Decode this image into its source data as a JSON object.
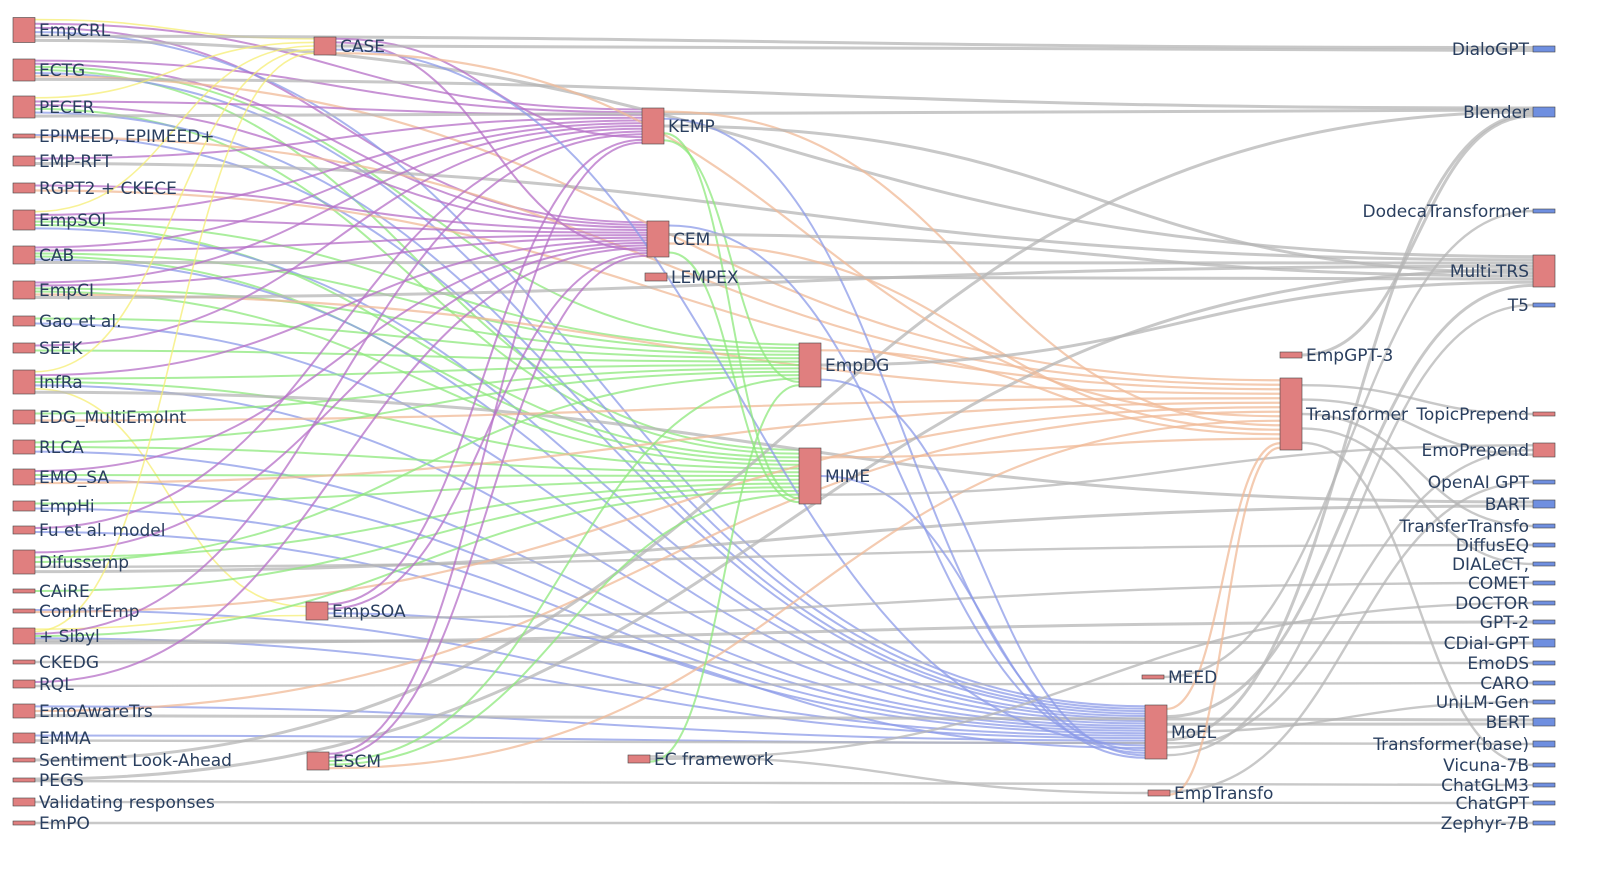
{
  "diagram": {
    "type": "sankey",
    "colors": {
      "node_default": "#e07f7f",
      "node_output": "#6f8fe0",
      "link_default": "#b5b5b5",
      "yellow": "#f5ee73",
      "purple": "#b56fc7",
      "green": "#8ee87c",
      "blue": "#8c9be8",
      "orange": "#f0b997"
    },
    "nodes": {
      "EmpCRL": {
        "label": "EmpCRL"
      },
      "ECTG": {
        "label": "ECTG"
      },
      "PECER": {
        "label": "PECER"
      },
      "EPIMEED": {
        "label": "EPIMEED, EPIMEED+"
      },
      "EMPRFT": {
        "label": "EMP-RFT"
      },
      "RGPT2": {
        "label": "RGPT2 + CKECE"
      },
      "EmpSOI": {
        "label": "EmpSOI"
      },
      "CAB": {
        "label": "CAB"
      },
      "EmpCI": {
        "label": "EmpCI"
      },
      "Gao": {
        "label": "Gao et al."
      },
      "SEEK": {
        "label": "SEEK"
      },
      "InfRa": {
        "label": "InfRa"
      },
      "EDG": {
        "label": "EDG_MultiEmoInt"
      },
      "RLCA": {
        "label": "RLCA"
      },
      "EMOSA": {
        "label": "EMO_SA"
      },
      "EmpHi": {
        "label": "EmpHi"
      },
      "Fu": {
        "label": "Fu et al. model"
      },
      "Difussemp": {
        "label": "Difussemp"
      },
      "CAiRE": {
        "label": "CAiRE"
      },
      "ConIntrEmp": {
        "label": "ConIntrEmp"
      },
      "Sibyl": {
        "label": "+ Sibyl"
      },
      "CKEDG": {
        "label": "CKEDG"
      },
      "RQL": {
        "label": "RQL"
      },
      "EmoAwareTrs": {
        "label": "EmoAwareTrs"
      },
      "EMMA": {
        "label": "EMMA"
      },
      "SLA": {
        "label": "Sentiment Look-Ahead"
      },
      "PEGS": {
        "label": "PEGS"
      },
      "ValResp": {
        "label": "Validating responses"
      },
      "EmPO": {
        "label": "EmPO"
      },
      "CASE": {
        "label": "CASE"
      },
      "EmpSOA": {
        "label": "EmpSOA"
      },
      "ESCM": {
        "label": "ESCM"
      },
      "KEMP": {
        "label": "KEMP"
      },
      "CEM": {
        "label": "CEM"
      },
      "LEMPEX": {
        "label": "LEMPEX"
      },
      "ECframework": {
        "label": "EC framework"
      },
      "EmpDG": {
        "label": "EmpDG"
      },
      "MIME": {
        "label": "MIME"
      },
      "MEED": {
        "label": "MEED"
      },
      "MoEL": {
        "label": "MoEL"
      },
      "EmpTransfo": {
        "label": "EmpTransfo"
      },
      "EmpGPT3": {
        "label": "EmpGPT-3"
      },
      "Transformer": {
        "label": "Transformer"
      },
      "DialoGPT": {
        "label": "DialoGPT"
      },
      "Blender": {
        "label": "Blender"
      },
      "Dodeca": {
        "label": "DodecaTransformer"
      },
      "MultiTRS": {
        "label": "Multi-TRS"
      },
      "T5": {
        "label": "T5"
      },
      "TopicPrepend": {
        "label": "TopicPrepend"
      },
      "EmoPrepend": {
        "label": "EmoPrepend"
      },
      "OpenAIGPT": {
        "label": "OpenAI GPT"
      },
      "BART": {
        "label": "BART"
      },
      "TransferTransfo": {
        "label": "TransferTransfo"
      },
      "DiffusEQ": {
        "label": "DiffusEQ"
      },
      "DIALeCT": {
        "label": "DIALeCT,"
      },
      "COMET": {
        "label": "COMET"
      },
      "DOCTOR": {
        "label": "DOCTOR"
      },
      "GPT2": {
        "label": "GPT-2"
      },
      "CDialGPT": {
        "label": "CDial-GPT"
      },
      "EmoDS": {
        "label": "EmoDS"
      },
      "CARO": {
        "label": "CARO"
      },
      "UniLMGen": {
        "label": "UniLM-Gen"
      },
      "BERT": {
        "label": "BERT"
      },
      "TransformerBase": {
        "label": "Transformer(base)"
      },
      "Vicuna": {
        "label": "Vicuna-7B"
      },
      "ChatGLM3": {
        "label": "ChatGLM3"
      },
      "ChatGPT": {
        "label": "ChatGPT"
      },
      "Zephyr": {
        "label": "Zephyr-7B"
      }
    },
    "links": [
      {
        "source": "EmpCRL",
        "target": "CASE"
      },
      {
        "source": "EmpCRL",
        "target": "KEMP"
      },
      {
        "source": "EmpCRL",
        "target": "CEM"
      },
      {
        "source": "EmpCRL",
        "target": "MoEL"
      },
      {
        "source": "EmpCRL",
        "target": "DialoGPT"
      },
      {
        "source": "EmpCRL",
        "target": "MultiTRS"
      },
      {
        "source": "ECTG",
        "target": "KEMP"
      },
      {
        "source": "ECTG",
        "target": "CEM"
      },
      {
        "source": "ECTG",
        "target": "EmpDG"
      },
      {
        "source": "ECTG",
        "target": "MIME"
      },
      {
        "source": "ECTG",
        "target": "MoEL"
      },
      {
        "source": "ECTG",
        "target": "Transformer"
      },
      {
        "source": "ECTG",
        "target": "Blender"
      },
      {
        "source": "PECER",
        "target": "CASE"
      },
      {
        "source": "PECER",
        "target": "KEMP"
      },
      {
        "source": "PECER",
        "target": "CEM"
      },
      {
        "source": "PECER",
        "target": "MIME"
      },
      {
        "source": "PECER",
        "target": "MoEL"
      },
      {
        "source": "PECER",
        "target": "Blender"
      },
      {
        "source": "EPIMEED",
        "target": "MoEL"
      },
      {
        "source": "EPIMEED",
        "target": "Transformer"
      },
      {
        "source": "EMPRFT",
        "target": "KEMP"
      },
      {
        "source": "EMPRFT",
        "target": "MultiTRS"
      },
      {
        "source": "RGPT2",
        "target": "CEM"
      },
      {
        "source": "RGPT2",
        "target": "Transformer"
      },
      {
        "source": "EmpSOI",
        "target": "CASE"
      },
      {
        "source": "EmpSOI",
        "target": "KEMP"
      },
      {
        "source": "EmpSOI",
        "target": "CEM"
      },
      {
        "source": "EmpSOI",
        "target": "EmpDG"
      },
      {
        "source": "EmpSOI",
        "target": "MIME"
      },
      {
        "source": "EmpSOI",
        "target": "MoEL"
      },
      {
        "source": "CAB",
        "target": "KEMP"
      },
      {
        "source": "CAB",
        "target": "CEM"
      },
      {
        "source": "CAB",
        "target": "EmpDG"
      },
      {
        "source": "CAB",
        "target": "MIME"
      },
      {
        "source": "CAB",
        "target": "MoEL"
      },
      {
        "source": "CAB",
        "target": "MultiTRS"
      },
      {
        "source": "EmpCI",
        "target": "KEMP"
      },
      {
        "source": "EmpCI",
        "target": "CEM"
      },
      {
        "source": "EmpCI",
        "target": "EmpDG"
      },
      {
        "source": "EmpCI",
        "target": "MIME"
      },
      {
        "source": "EmpCI",
        "target": "Transformer"
      },
      {
        "source": "EmpCI",
        "target": "MultiTRS"
      },
      {
        "source": "Gao",
        "target": "EmpDG"
      },
      {
        "source": "Gao",
        "target": "MoEL"
      },
      {
        "source": "SEEK",
        "target": "KEMP"
      },
      {
        "source": "SEEK",
        "target": "EmpDG"
      },
      {
        "source": "InfRa",
        "target": "CASE"
      },
      {
        "source": "InfRa",
        "target": "CEM"
      },
      {
        "source": "InfRa",
        "target": "EmpDG"
      },
      {
        "source": "InfRa",
        "target": "MIME"
      },
      {
        "source": "InfRa",
        "target": "MoEL"
      },
      {
        "source": "InfRa",
        "target": "EmpSOA"
      },
      {
        "source": "InfRa",
        "target": "BART"
      },
      {
        "source": "EDG",
        "target": "EmpDG"
      },
      {
        "source": "EDG",
        "target": "Transformer"
      },
      {
        "source": "RLCA",
        "target": "EmpDG"
      },
      {
        "source": "RLCA",
        "target": "MIME"
      },
      {
        "source": "RLCA",
        "target": "MoEL"
      },
      {
        "source": "EMOSA",
        "target": "CEM"
      },
      {
        "source": "EMOSA",
        "target": "MIME"
      },
      {
        "source": "EMOSA",
        "target": "MoEL"
      },
      {
        "source": "EMOSA",
        "target": "Transformer"
      },
      {
        "source": "EmpHi",
        "target": "MIME"
      },
      {
        "source": "EmpHi",
        "target": "MoEL"
      },
      {
        "source": "Fu",
        "target": "KEMP"
      },
      {
        "source": "Fu",
        "target": "MoEL"
      },
      {
        "source": "Difussemp",
        "target": "CEM"
      },
      {
        "source": "Difussemp",
        "target": "MIME"
      },
      {
        "source": "Difussemp",
        "target": "EmpDG"
      },
      {
        "source": "Difussemp",
        "target": "DiffusEQ"
      },
      {
        "source": "Difussemp",
        "target": "BART"
      },
      {
        "source": "CAiRE",
        "target": "MIME"
      },
      {
        "source": "ConIntrEmp",
        "target": "MoEL"
      },
      {
        "source": "ConIntrEmp",
        "target": "Transformer"
      },
      {
        "source": "Sibyl",
        "target": "EmpSOA"
      },
      {
        "source": "Sibyl",
        "target": "CASE"
      },
      {
        "source": "Sibyl",
        "target": "KEMP"
      },
      {
        "source": "Sibyl",
        "target": "MIME"
      },
      {
        "source": "Sibyl",
        "target": "MoEL"
      },
      {
        "source": "Sibyl",
        "target": "CDialGPT"
      },
      {
        "source": "Sibyl",
        "target": "GPT2"
      },
      {
        "source": "CKEDG",
        "target": "EmoDS"
      },
      {
        "source": "RQL",
        "target": "CEM"
      },
      {
        "source": "RQL",
        "target": "CARO"
      },
      {
        "source": "EmoAwareTrs",
        "target": "MoEL"
      },
      {
        "source": "EmoAwareTrs",
        "target": "Transformer"
      },
      {
        "source": "EmoAwareTrs",
        "target": "BERT"
      },
      {
        "source": "EMMA",
        "target": "MoEL"
      },
      {
        "source": "EMMA",
        "target": "TransformerBase"
      },
      {
        "source": "SLA",
        "target": "Blender"
      },
      {
        "source": "PEGS",
        "target": "MultiTRS"
      },
      {
        "source": "PEGS",
        "target": "ChatGLM3"
      },
      {
        "source": "ValResp",
        "target": "ChatGPT"
      },
      {
        "source": "EmPO",
        "target": "Zephyr"
      },
      {
        "source": "CASE",
        "target": "KEMP"
      },
      {
        "source": "CASE",
        "target": "CEM"
      },
      {
        "source": "CASE",
        "target": "DialoGPT"
      },
      {
        "source": "CASE",
        "target": "MoEL"
      },
      {
        "source": "CASE",
        "target": "Transformer"
      },
      {
        "source": "EmpSOA",
        "target": "KEMP"
      },
      {
        "source": "EmpSOA",
        "target": "CEM"
      },
      {
        "source": "EmpSOA",
        "target": "MoEL"
      },
      {
        "source": "EmpSOA",
        "target": "COMET"
      },
      {
        "source": "ESCM",
        "target": "KEMP"
      },
      {
        "source": "ESCM",
        "target": "CEM"
      },
      {
        "source": "ESCM",
        "target": "EmpDG"
      },
      {
        "source": "ESCM",
        "target": "MIME"
      },
      {
        "source": "ESCM",
        "target": "Transformer"
      },
      {
        "source": "KEMP",
        "target": "Transformer"
      },
      {
        "source": "KEMP",
        "target": "MoEL"
      },
      {
        "source": "KEMP",
        "target": "MultiTRS"
      },
      {
        "source": "KEMP",
        "target": "MIME"
      },
      {
        "source": "KEMP",
        "target": "EmpDG"
      },
      {
        "source": "CEM",
        "target": "MoEL"
      },
      {
        "source": "CEM",
        "target": "MultiTRS"
      },
      {
        "source": "CEM",
        "target": "Transformer"
      },
      {
        "source": "CEM",
        "target": "MIME"
      },
      {
        "source": "LEMPEX",
        "target": "MultiTRS"
      },
      {
        "source": "ECframework",
        "target": "EmpTransfo"
      },
      {
        "source": "ECframework",
        "target": "DOCTOR"
      },
      {
        "source": "ECframework",
        "target": "EmpDG"
      },
      {
        "source": "EmpDG",
        "target": "Transformer"
      },
      {
        "source": "EmpDG",
        "target": "MultiTRS"
      },
      {
        "source": "EmpDG",
        "target": "MoEL"
      },
      {
        "source": "MIME",
        "target": "Transformer"
      },
      {
        "source": "MIME",
        "target": "MoEL"
      },
      {
        "source": "MIME",
        "target": "EmoPrepend"
      },
      {
        "source": "MEED",
        "target": "Dodeca"
      },
      {
        "source": "MoEL",
        "target": "Transformer"
      },
      {
        "source": "MoEL",
        "target": "MultiTRS"
      },
      {
        "source": "MoEL",
        "target": "BERT"
      },
      {
        "source": "MoEL",
        "target": "UniLMGen"
      },
      {
        "source": "MoEL",
        "target": "Blender"
      },
      {
        "source": "MoEL",
        "target": "EmoPrepend"
      },
      {
        "source": "MoEL",
        "target": "T5"
      },
      {
        "source": "EmpTransfo",
        "target": "OpenAIGPT"
      },
      {
        "source": "EmpTransfo",
        "target": "Transformer"
      },
      {
        "source": "EmpGPT3",
        "target": "Blender"
      },
      {
        "source": "Transformer",
        "target": "TopicPrepend"
      },
      {
        "source": "Transformer",
        "target": "EmoPrepend"
      },
      {
        "source": "Transformer",
        "target": "TransferTransfo"
      },
      {
        "source": "Transformer",
        "target": "DIALeCT"
      },
      {
        "source": "Transformer",
        "target": "Vicuna"
      }
    ]
  }
}
